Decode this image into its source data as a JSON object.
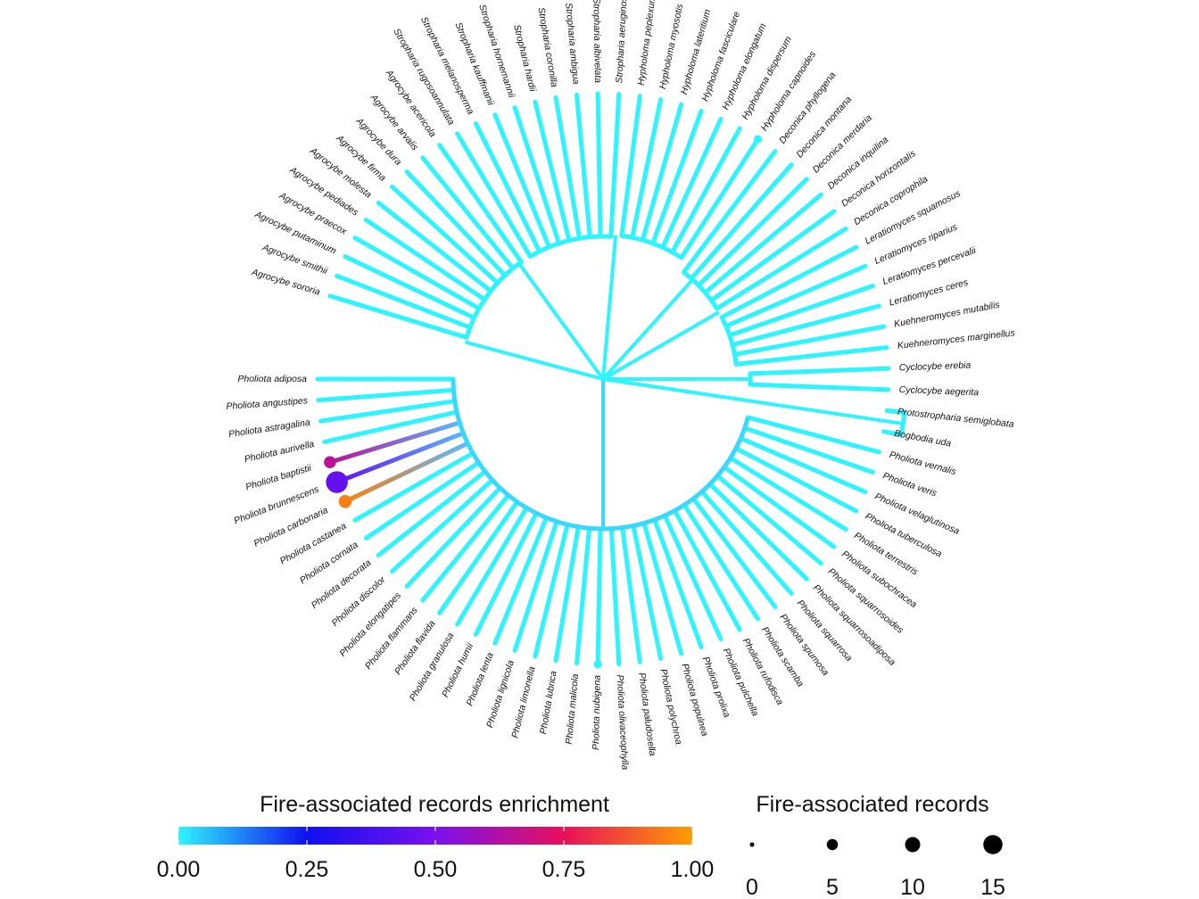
{
  "chart_data": {
    "type": "circular-phylogenetic-tree",
    "tips": [
      {
        "label": "Pholiota adiposa",
        "enrichment": 0,
        "records": 0
      },
      {
        "label": "Pholiota angustipes",
        "enrichment": 0,
        "records": 0
      },
      {
        "label": "Pholiota astragalina",
        "enrichment": 0,
        "records": 0
      },
      {
        "label": "Pholiota aurivella",
        "enrichment": 0,
        "records": 0
      },
      {
        "label": "Pholiota baptistii",
        "enrichment": 0.65,
        "records": 5
      },
      {
        "label": "Pholiota brunnescens",
        "enrichment": 0.45,
        "records": 15
      },
      {
        "label": "Pholiota carbonaria",
        "enrichment": 0.95,
        "records": 6
      },
      {
        "label": "Pholiota castanea",
        "enrichment": 0,
        "records": 0
      },
      {
        "label": "Pholiota cornata",
        "enrichment": 0,
        "records": 0
      },
      {
        "label": "Pholiota decorata",
        "enrichment": 0,
        "records": 0
      },
      {
        "label": "Pholiota discolor",
        "enrichment": 0,
        "records": 0
      },
      {
        "label": "Pholiota elongatipes",
        "enrichment": 0,
        "records": 0
      },
      {
        "label": "Pholiota flammans",
        "enrichment": 0,
        "records": 0
      },
      {
        "label": "Pholiota flavida",
        "enrichment": 0,
        "records": 0
      },
      {
        "label": "Pholiota granulosa",
        "enrichment": 0,
        "records": 0
      },
      {
        "label": "Pholiota humii",
        "enrichment": 0,
        "records": 0
      },
      {
        "label": "Pholiota lenta",
        "enrichment": 0,
        "records": 0
      },
      {
        "label": "Pholiota lignicola",
        "enrichment": 0,
        "records": 0
      },
      {
        "label": "Pholiota limonella",
        "enrichment": 0,
        "records": 0
      },
      {
        "label": "Pholiota lubrica",
        "enrichment": 0,
        "records": 0
      },
      {
        "label": "Pholiota malicola",
        "enrichment": 0,
        "records": 0
      },
      {
        "label": "Pholiota nubigena",
        "enrichment": 0,
        "records": 1
      },
      {
        "label": "Pholiota olivaceophylla",
        "enrichment": 0,
        "records": 0
      },
      {
        "label": "Pholiota paludosella",
        "enrichment": 0,
        "records": 0
      },
      {
        "label": "Pholiota polychroa",
        "enrichment": 0,
        "records": 0
      },
      {
        "label": "Pholiota populnea",
        "enrichment": 0,
        "records": 0
      },
      {
        "label": "Pholiota prolixa",
        "enrichment": 0,
        "records": 0
      },
      {
        "label": "Pholiota pulchella",
        "enrichment": 0,
        "records": 0
      },
      {
        "label": "Pholiota rufodisca",
        "enrichment": 0,
        "records": 0
      },
      {
        "label": "Pholiota scamba",
        "enrichment": 0,
        "records": 0
      },
      {
        "label": "Pholiota spumosa",
        "enrichment": 0,
        "records": 0
      },
      {
        "label": "Pholiota squarrosa",
        "enrichment": 0,
        "records": 0
      },
      {
        "label": "Pholiota squarrosoadiposa",
        "enrichment": 0,
        "records": 0
      },
      {
        "label": "Pholiota squarrosoides",
        "enrichment": 0,
        "records": 0
      },
      {
        "label": "Pholiota subochracea",
        "enrichment": 0,
        "records": 0
      },
      {
        "label": "Pholiota terrestris",
        "enrichment": 0,
        "records": 0
      },
      {
        "label": "Pholiota tuberculosa",
        "enrichment": 0,
        "records": 0
      },
      {
        "label": "Pholiota velaglutinosa",
        "enrichment": 0,
        "records": 0
      },
      {
        "label": "Pholiota veris",
        "enrichment": 0,
        "records": 0
      },
      {
        "label": "Pholiota vernalis",
        "enrichment": 0,
        "records": 0
      },
      {
        "label": "Bogbodia uda",
        "enrichment": 0,
        "records": 0
      },
      {
        "label": "Protostropharia semiglobata",
        "enrichment": 0,
        "records": 0
      },
      {
        "label": "Cyclocybe aegerita",
        "enrichment": 0,
        "records": 0
      },
      {
        "label": "Cyclocybe erebia",
        "enrichment": 0,
        "records": 0
      },
      {
        "label": "Kuehneromyces marginellus",
        "enrichment": 0,
        "records": 0
      },
      {
        "label": "Kuehneromyces mutabilis",
        "enrichment": 0,
        "records": 0
      },
      {
        "label": "Leratiomyces ceres",
        "enrichment": 0,
        "records": 0
      },
      {
        "label": "Leratiomyces percevalii",
        "enrichment": 0,
        "records": 0
      },
      {
        "label": "Leratiomyces riparius",
        "enrichment": 0,
        "records": 0
      },
      {
        "label": "Leratiomyces squamosus",
        "enrichment": 0,
        "records": 0
      },
      {
        "label": "Deconica coprophila",
        "enrichment": 0,
        "records": 0
      },
      {
        "label": "Deconica horizontalis",
        "enrichment": 0,
        "records": 0
      },
      {
        "label": "Deconica inquilina",
        "enrichment": 0,
        "records": 0
      },
      {
        "label": "Deconica merdaria",
        "enrichment": 0,
        "records": 0
      },
      {
        "label": "Deconica montana",
        "enrichment": 0,
        "records": 0
      },
      {
        "label": "Deconica phyllogena",
        "enrichment": 0,
        "records": 0
      },
      {
        "label": "Hypholoma capnoides",
        "enrichment": 0,
        "records": 1
      },
      {
        "label": "Hypholoma dispersum",
        "enrichment": 0,
        "records": 0
      },
      {
        "label": "Hypholoma elongatum",
        "enrichment": 0,
        "records": 0
      },
      {
        "label": "Hypholoma fasciculare",
        "enrichment": 0,
        "records": 0
      },
      {
        "label": "Hypholoma lateritium",
        "enrichment": 0,
        "records": 0
      },
      {
        "label": "Hypholoma myosotis",
        "enrichment": 0,
        "records": 0
      },
      {
        "label": "Hypholoma peplexum",
        "enrichment": 0,
        "records": 0
      },
      {
        "label": "Stropharia aeruginosa",
        "enrichment": 0,
        "records": 0
      },
      {
        "label": "Stropharia albivelata",
        "enrichment": 0,
        "records": 0
      },
      {
        "label": "Stropharia ambigua",
        "enrichment": 0,
        "records": 0
      },
      {
        "label": "Stropharia coronilla",
        "enrichment": 0,
        "records": 0
      },
      {
        "label": "Stropharia hardii",
        "enrichment": 0,
        "records": 0
      },
      {
        "label": "Stropharia hornemannii",
        "enrichment": 0,
        "records": 0
      },
      {
        "label": "Stropharia kauffmanii",
        "enrichment": 0,
        "records": 0
      },
      {
        "label": "Stropharia melanosperma",
        "enrichment": 0,
        "records": 0
      },
      {
        "label": "Stropharia rugosoannulata",
        "enrichment": 0,
        "records": 0
      },
      {
        "label": "Agrocybe acericola",
        "enrichment": 0,
        "records": 0
      },
      {
        "label": "Agrocybe arvalis",
        "enrichment": 0,
        "records": 0
      },
      {
        "label": "Agrocybe dura",
        "enrichment": 0,
        "records": 0
      },
      {
        "label": "Agrocybe firma",
        "enrichment": 0,
        "records": 0
      },
      {
        "label": "Agrocybe molesta",
        "enrichment": 0,
        "records": 0
      },
      {
        "label": "Agrocybe pediades",
        "enrichment": 0,
        "records": 0
      },
      {
        "label": "Agrocybe praecox",
        "enrichment": 0,
        "records": 0
      },
      {
        "label": "Agrocybe putaminum",
        "enrichment": 0,
        "records": 0
      },
      {
        "label": "Agrocybe smithii",
        "enrichment": 0,
        "records": 0
      },
      {
        "label": "Agrocybe sororia",
        "enrichment": 0,
        "records": 0
      }
    ],
    "legend_color": {
      "title": "Fire-associated records enrichment",
      "ticks": [
        "0.00",
        "0.25",
        "0.50",
        "0.75",
        "1.00"
      ],
      "range": [
        0,
        1
      ],
      "colors": [
        "#2ef4ff",
        "#1010f0",
        "#7a10ee",
        "#e8105a",
        "#ff9c00"
      ]
    },
    "legend_size": {
      "title": "Fire-associated records",
      "ticks": [
        "0",
        "5",
        "10",
        "15"
      ],
      "values": [
        0,
        5,
        10,
        15
      ]
    }
  }
}
